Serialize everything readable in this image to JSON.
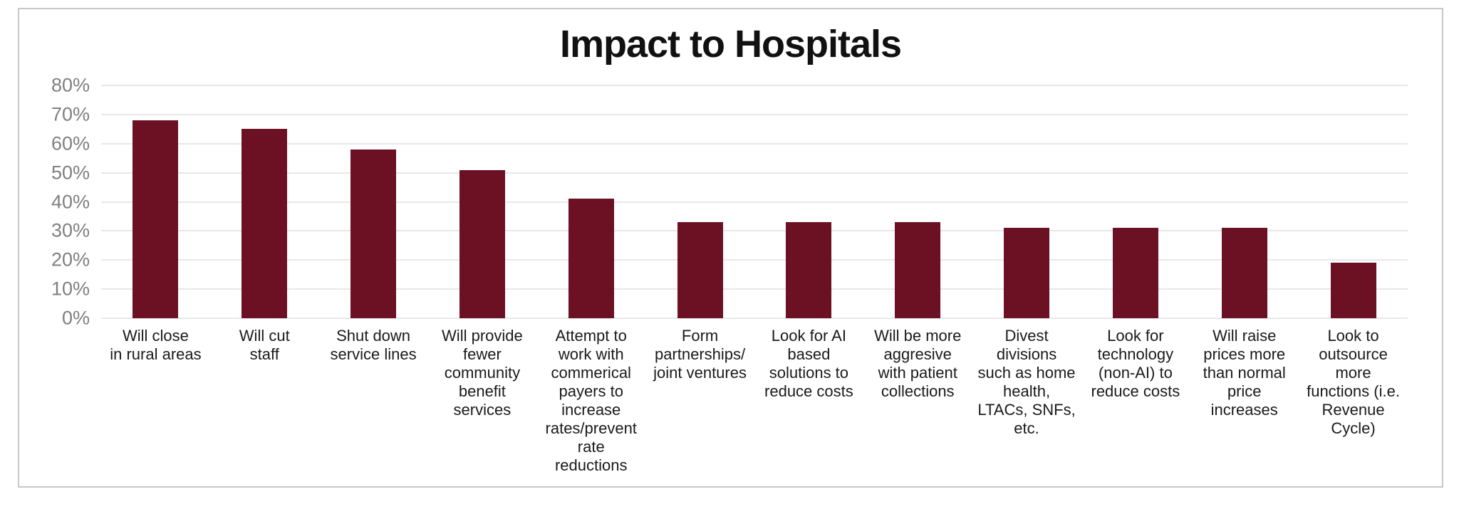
{
  "page": {
    "background_color": "#ffffff",
    "card_border_color": "#c8c8c8"
  },
  "chart_data": {
    "type": "bar",
    "title": "Impact to Hospitals",
    "title_color": "#111111",
    "bar_color": "#6c1023",
    "gridline_color": "#e8e8e8",
    "ytick_color": "#808080",
    "category_label_color": "#1a1a1a",
    "grid": true,
    "legend": "none",
    "ylim": [
      0,
      80
    ],
    "ytick_step": 10,
    "ytick_labels": [
      "0%",
      "10%",
      "20%",
      "30%",
      "40%",
      "50%",
      "60%",
      "70%",
      "80%"
    ],
    "xlabel": "",
    "ylabel": "",
    "categories": [
      "Will close in rural areas",
      "Will cut staff",
      "Shut down service lines",
      "Will provide fewer community benefit services",
      "Attempt to work with commerical payers to increase rates/prevent rate reductions",
      "Form partnerships/ joint ventures",
      "Look for AI based solutions to reduce costs",
      "Will be more aggresive with patient collections",
      "Divest divisions such as home health, LTACs, SNFs, etc.",
      "Look for technology (non-AI) to reduce costs",
      "Will raise prices more than normal price increases",
      "Look to outsource more functions (i.e. Revenue Cycle)"
    ],
    "category_lines": [
      [
        "Will close",
        "in rural areas"
      ],
      [
        "Will cut",
        "staff"
      ],
      [
        "Shut down",
        "service lines"
      ],
      [
        "Will provide",
        "fewer",
        "community",
        "benefit",
        "services"
      ],
      [
        "Attempt to",
        "work with",
        "commerical",
        "payers to",
        "increase",
        "rates/prevent",
        "rate",
        "reductions"
      ],
      [
        "Form",
        "partnerships/",
        "joint ventures"
      ],
      [
        "Look for AI",
        "based",
        "solutions to",
        "reduce costs"
      ],
      [
        "Will be more",
        "aggresive",
        "with patient",
        "collections"
      ],
      [
        "Divest",
        "divisions",
        "such as home",
        "health,",
        "LTACs, SNFs,",
        "etc."
      ],
      [
        "Look for",
        "technology",
        "(non-AI) to",
        "reduce costs"
      ],
      [
        "Will raise",
        "prices more",
        "than normal",
        "price",
        "increases"
      ],
      [
        "Look to",
        "outsource",
        "more",
        "functions (i.e.",
        "Revenue",
        "Cycle)"
      ]
    ],
    "values": [
      68,
      65,
      58,
      51,
      41,
      33,
      33,
      33,
      31,
      31,
      31,
      19
    ],
    "value_unit": "%"
  }
}
